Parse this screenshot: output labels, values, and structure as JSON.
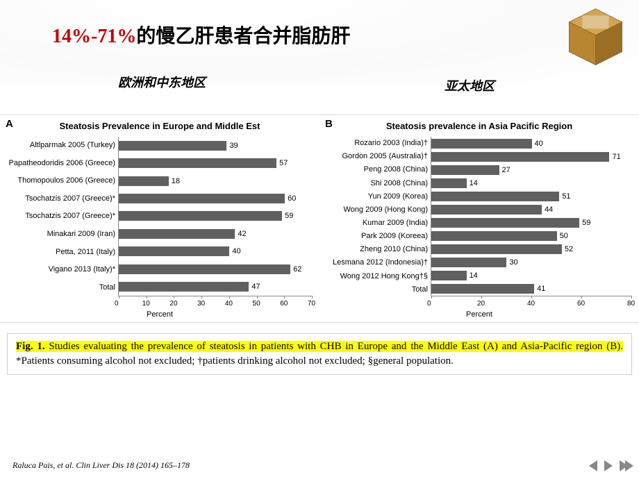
{
  "title": {
    "percent": "14%-71%",
    "rest": "的慢乙肝患者合并脂肪肝"
  },
  "regions": {
    "left": "欧洲和中东地区",
    "right": "亚太地区"
  },
  "chartA": {
    "panel": "A",
    "title": "Steatosis Prevalence in Europe and Middle Est",
    "xlabel": "Percent",
    "xmax": 70,
    "xticks": [
      "0",
      "10",
      "20",
      "30",
      "40",
      "50",
      "60",
      "70"
    ],
    "bar_color": "#606060",
    "items": [
      {
        "label": "Altlparmak 2005 (Turkey)",
        "value": 39
      },
      {
        "label": "Papatheodoridis 2006 (Greece)",
        "value": 57
      },
      {
        "label": "Thomopoulos 2006 (Greece)",
        "value": 18
      },
      {
        "label": "Tsochatzis 2007 (Greece)*",
        "value": 60
      },
      {
        "label": "Tsochatzis 2007 (Greece)*",
        "value": 59
      },
      {
        "label": "Minakari 2009 (Iran)",
        "value": 42
      },
      {
        "label": "Petta, 2011 (Italy)",
        "value": 40
      },
      {
        "label": "Vigano 2013 (Italy)*",
        "value": 62
      },
      {
        "label": "Total",
        "value": 47
      }
    ]
  },
  "chartB": {
    "panel": "B",
    "title": "Steatosis prevalence in Asia Pacific Region",
    "xlabel": "Percent",
    "xmax": 80,
    "xticks": [
      "0",
      "20",
      "40",
      "60",
      "80"
    ],
    "bar_color": "#606060",
    "items": [
      {
        "label": "Rozario 2003 (India)†",
        "value": 40
      },
      {
        "label": "Gordon 2005 (Australia)†",
        "value": 71
      },
      {
        "label": "Peng 2008 (China)",
        "value": 27
      },
      {
        "label": "Shi 2008 (China)",
        "value": 14
      },
      {
        "label": "Yun 2009 (Korea)",
        "value": 51
      },
      {
        "label": "Wong 2009 (Hong Kong)",
        "value": 44
      },
      {
        "label": "Kumar 2009 (India)",
        "value": 59
      },
      {
        "label": "Park 2009 (Koreea)",
        "value": 50
      },
      {
        "label": "Zheng 2010 (China)",
        "value": 52
      },
      {
        "label": "Lesmana 2012 (Indonesia)†",
        "value": 30
      },
      {
        "label": "Wong 2012 Hong Kong†§",
        "value": 14
      },
      {
        "label": "Total",
        "value": 41
      }
    ]
  },
  "caption": {
    "fig": "Fig. 1.",
    "hl": "Studies evaluating the prevalence of steatosis in patients with CHB in Europe and the Middle East (A) and Asia-Pacific region (B).",
    "tail": " *Patients consuming alcohol not excluded; †patients drinking alcohol not excluded; §general population."
  },
  "citation": "Raluca Pais, et al. Clin Liver Dis 18 (2014) 165–178"
}
